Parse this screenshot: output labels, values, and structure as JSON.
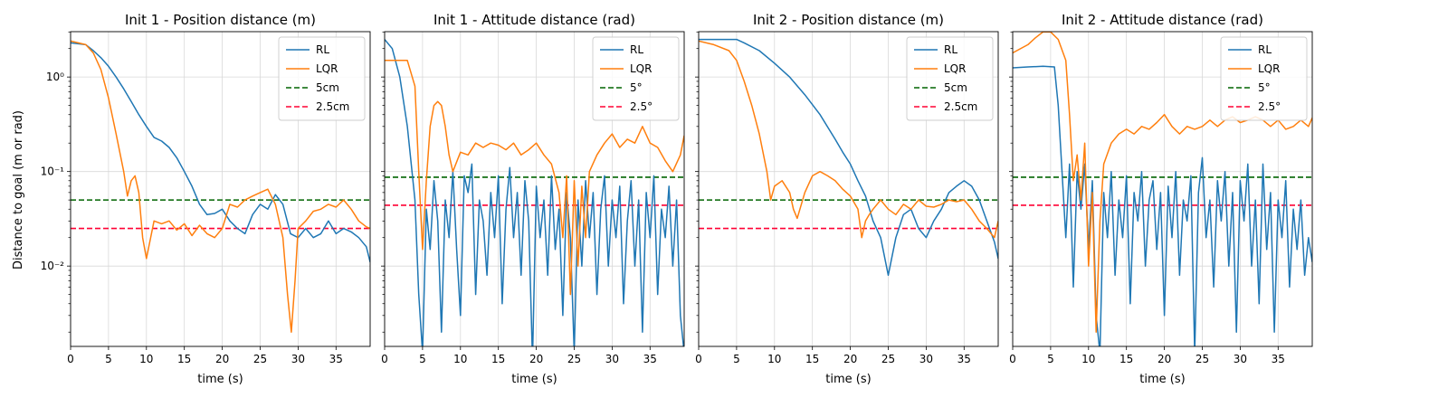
{
  "figure": {
    "ylabel": "Distance to goal (m or rad)",
    "xlabel": "time (s)",
    "xlim": [
      0,
      39.5
    ],
    "ylim_log10": [
      -2.85,
      0.48
    ],
    "xticks": [
      0,
      5,
      10,
      15,
      20,
      25,
      30,
      35
    ],
    "yticks": [
      {
        "value": 0.01,
        "label": "10⁻²"
      },
      {
        "value": 0.1,
        "label": "10⁻¹"
      },
      {
        "value": 1,
        "label": "10⁰"
      }
    ],
    "colors": {
      "RL": "#1f77b4",
      "LQR": "#ff7f0e",
      "threshold_1": "#006400",
      "threshold_2": "#ff0033"
    }
  },
  "chart_data": [
    {
      "type": "line",
      "title": "Init 1 - Position distance (m)",
      "legend_location": "top-right",
      "series": [
        {
          "name": "RL",
          "x": [
            0,
            2,
            3,
            4,
            5,
            6,
            7,
            8,
            9,
            10,
            11,
            12,
            13,
            14,
            15,
            16,
            17,
            18,
            19,
            20,
            21,
            22,
            23,
            24,
            25,
            26,
            27,
            28,
            29,
            30,
            31,
            32,
            33,
            34,
            35,
            36,
            37,
            38,
            39,
            39.5
          ],
          "y": [
            2.3,
            2.2,
            1.9,
            1.6,
            1.3,
            1.0,
            0.75,
            0.55,
            0.4,
            0.3,
            0.23,
            0.21,
            0.18,
            0.14,
            0.1,
            0.07,
            0.045,
            0.035,
            0.036,
            0.04,
            0.03,
            0.025,
            0.022,
            0.035,
            0.045,
            0.04,
            0.057,
            0.045,
            0.022,
            0.02,
            0.025,
            0.02,
            0.022,
            0.03,
            0.022,
            0.025,
            0.023,
            0.02,
            0.016,
            0.011
          ]
        },
        {
          "name": "LQR",
          "x": [
            0,
            2,
            3,
            4,
            5,
            6,
            7,
            7.5,
            8,
            8.5,
            9,
            9.5,
            10,
            11,
            12,
            13,
            14,
            15,
            16,
            17,
            18,
            19,
            20,
            21,
            22,
            23,
            24,
            25,
            26,
            27,
            28,
            28.6,
            29.1,
            29.6,
            30,
            31,
            32,
            33,
            34,
            35,
            36,
            37,
            38,
            39,
            39.5
          ],
          "y": [
            2.4,
            2.2,
            1.8,
            1.2,
            0.6,
            0.25,
            0.1,
            0.055,
            0.08,
            0.09,
            0.06,
            0.02,
            0.012,
            0.03,
            0.028,
            0.03,
            0.024,
            0.028,
            0.021,
            0.027,
            0.022,
            0.02,
            0.025,
            0.045,
            0.042,
            0.05,
            0.055,
            0.06,
            0.065,
            0.045,
            0.02,
            0.005,
            0.002,
            0.007,
            0.025,
            0.03,
            0.038,
            0.04,
            0.045,
            0.042,
            0.05,
            0.04,
            0.03,
            0.026,
            0.025
          ]
        },
        {
          "name": "5cm",
          "style": "dashed",
          "y_constant": 0.05
        },
        {
          "name": "2.5cm",
          "style": "dashed",
          "y_constant": 0.025
        }
      ]
    },
    {
      "type": "line",
      "title": "Init 1 - Attitude distance (rad)",
      "legend_location": "top-right",
      "series": [
        {
          "name": "RL",
          "x": [
            0,
            1,
            2,
            3,
            4,
            4.5,
            5,
            5.5,
            6,
            6.5,
            7,
            7.5,
            8,
            8.5,
            9,
            9.5,
            10,
            10.5,
            11,
            11.5,
            12,
            12.5,
            13,
            13.5,
            14,
            14.5,
            15,
            15.5,
            16,
            16.5,
            17,
            17.5,
            18,
            18.5,
            19,
            19.5,
            20,
            20.5,
            21,
            21.5,
            22,
            22.5,
            23,
            23.5,
            24,
            24.5,
            25,
            25.5,
            26,
            26.5,
            27,
            27.5,
            28,
            28.5,
            29,
            29.5,
            30,
            30.5,
            31,
            31.5,
            32,
            32.5,
            33,
            33.5,
            34,
            34.5,
            35,
            35.5,
            36,
            36.5,
            37,
            37.5,
            38,
            38.5,
            39,
            39.5
          ],
          "y": [
            2.5,
            2.0,
            1.0,
            0.3,
            0.05,
            0.005,
            0.0012,
            0.04,
            0.015,
            0.08,
            0.03,
            0.002,
            0.05,
            0.02,
            0.1,
            0.015,
            0.003,
            0.09,
            0.06,
            0.12,
            0.005,
            0.05,
            0.03,
            0.008,
            0.06,
            0.02,
            0.09,
            0.004,
            0.04,
            0.11,
            0.02,
            0.06,
            0.008,
            0.08,
            0.03,
            0.001,
            0.07,
            0.02,
            0.05,
            0.008,
            0.09,
            0.015,
            0.04,
            0.003,
            0.06,
            0.02,
            0.0012,
            0.05,
            0.01,
            0.08,
            0.02,
            0.06,
            0.005,
            0.04,
            0.09,
            0.01,
            0.05,
            0.02,
            0.07,
            0.004,
            0.03,
            0.08,
            0.01,
            0.05,
            0.002,
            0.06,
            0.02,
            0.09,
            0.005,
            0.04,
            0.02,
            0.07,
            0.01,
            0.05,
            0.003,
            0.0012
          ]
        },
        {
          "name": "LQR",
          "x": [
            0,
            3,
            4,
            4.5,
            5,
            5.5,
            6,
            6.5,
            7,
            7.5,
            8,
            8.5,
            9,
            10,
            11,
            12,
            13,
            14,
            15,
            16,
            17,
            18,
            19,
            20,
            21,
            22,
            23,
            23.5,
            24,
            24.5,
            25,
            25.5,
            26,
            26.5,
            27,
            28,
            29,
            30,
            31,
            32,
            33,
            34,
            35,
            36,
            37,
            38,
            39,
            39.5
          ],
          "y": [
            1.5,
            1.5,
            0.8,
            0.1,
            0.015,
            0.08,
            0.3,
            0.5,
            0.55,
            0.5,
            0.3,
            0.15,
            0.1,
            0.16,
            0.15,
            0.2,
            0.18,
            0.2,
            0.19,
            0.17,
            0.2,
            0.15,
            0.17,
            0.2,
            0.15,
            0.12,
            0.06,
            0.02,
            0.09,
            0.005,
            0.08,
            0.01,
            0.07,
            0.02,
            0.1,
            0.15,
            0.2,
            0.25,
            0.18,
            0.22,
            0.2,
            0.3,
            0.2,
            0.18,
            0.13,
            0.1,
            0.15,
            0.24
          ]
        },
        {
          "name": "5°",
          "style": "dashed",
          "y_constant": 0.087
        },
        {
          "name": "2.5°",
          "style": "dashed",
          "y_constant": 0.044
        }
      ]
    },
    {
      "type": "line",
      "title": "Init 2 - Position distance (m)",
      "legend_location": "top-right",
      "series": [
        {
          "name": "RL",
          "x": [
            0,
            2,
            4,
            5,
            6,
            8,
            10,
            12,
            14,
            16,
            18,
            19,
            20,
            21,
            22,
            23,
            24,
            25,
            26,
            27,
            28,
            29,
            30,
            31,
            32,
            33,
            34,
            35,
            36,
            37,
            38,
            39,
            39.5
          ],
          "y": [
            2.5,
            2.5,
            2.5,
            2.5,
            2.3,
            1.9,
            1.4,
            1.0,
            0.65,
            0.4,
            0.22,
            0.16,
            0.12,
            0.08,
            0.055,
            0.03,
            0.02,
            0.008,
            0.02,
            0.035,
            0.04,
            0.025,
            0.02,
            0.03,
            0.04,
            0.06,
            0.07,
            0.08,
            0.07,
            0.05,
            0.03,
            0.018,
            0.012
          ]
        },
        {
          "name": "LQR",
          "x": [
            0,
            2,
            4,
            5,
            6,
            7,
            8,
            9,
            9.5,
            10,
            11,
            12,
            12.5,
            13,
            14,
            15,
            16,
            17,
            18,
            19,
            20,
            21,
            21.5,
            22,
            22.5,
            23,
            24,
            25,
            26,
            27,
            28,
            29,
            30,
            31,
            32,
            33,
            34,
            35,
            36,
            37,
            38,
            39,
            39.5
          ],
          "y": [
            2.4,
            2.2,
            1.9,
            1.5,
            0.9,
            0.5,
            0.25,
            0.1,
            0.05,
            0.07,
            0.08,
            0.06,
            0.04,
            0.032,
            0.06,
            0.09,
            0.1,
            0.09,
            0.08,
            0.065,
            0.055,
            0.04,
            0.02,
            0.03,
            0.035,
            0.04,
            0.05,
            0.04,
            0.035,
            0.045,
            0.04,
            0.05,
            0.043,
            0.042,
            0.045,
            0.05,
            0.048,
            0.05,
            0.04,
            0.03,
            0.025,
            0.02,
            0.03
          ]
        },
        {
          "name": "5cm",
          "style": "dashed",
          "y_constant": 0.05
        },
        {
          "name": "2.5cm",
          "style": "dashed",
          "y_constant": 0.025
        }
      ]
    },
    {
      "type": "line",
      "title": "Init 2 - Attitude distance (rad)",
      "legend_location": "top-right",
      "series": [
        {
          "name": "RL",
          "x": [
            0,
            2,
            4,
            5.5,
            6,
            6.5,
            7,
            7.5,
            8,
            8.5,
            9,
            9.5,
            10,
            10.5,
            11,
            11.5,
            12,
            12.5,
            13,
            13.5,
            14,
            14.5,
            15,
            15.5,
            16,
            16.5,
            17,
            17.5,
            18,
            18.5,
            19,
            19.5,
            20,
            20.5,
            21,
            21.5,
            22,
            22.5,
            23,
            23.5,
            24,
            24.5,
            25,
            25.5,
            26,
            26.5,
            27,
            27.5,
            28,
            28.5,
            29,
            29.5,
            30,
            30.5,
            31,
            31.5,
            32,
            32.5,
            33,
            33.5,
            34,
            34.5,
            35,
            35.5,
            36,
            36.5,
            37,
            37.5,
            38,
            38.5,
            39,
            39.5
          ],
          "y": [
            1.25,
            1.28,
            1.3,
            1.28,
            0.5,
            0.1,
            0.02,
            0.12,
            0.006,
            0.1,
            0.04,
            0.12,
            0.015,
            0.08,
            0.003,
            0.0012,
            0.06,
            0.02,
            0.1,
            0.008,
            0.05,
            0.02,
            0.09,
            0.004,
            0.06,
            0.03,
            0.1,
            0.01,
            0.05,
            0.08,
            0.015,
            0.06,
            0.003,
            0.07,
            0.02,
            0.1,
            0.008,
            0.05,
            0.03,
            0.09,
            0.0012,
            0.06,
            0.14,
            0.02,
            0.05,
            0.006,
            0.08,
            0.03,
            0.1,
            0.01,
            0.06,
            0.002,
            0.08,
            0.03,
            0.12,
            0.01,
            0.05,
            0.004,
            0.12,
            0.015,
            0.06,
            0.002,
            0.05,
            0.02,
            0.08,
            0.006,
            0.04,
            0.015,
            0.05,
            0.008,
            0.02,
            0.011
          ]
        },
        {
          "name": "LQR",
          "x": [
            0,
            2,
            3,
            4,
            5,
            6,
            7,
            7.5,
            8,
            8.5,
            9,
            9.5,
            10,
            10.5,
            11,
            11.5,
            12,
            13,
            14,
            15,
            16,
            17,
            18,
            19,
            20,
            21,
            22,
            23,
            24,
            25,
            26,
            27,
            28,
            29,
            30,
            31,
            32,
            33,
            34,
            35,
            36,
            37,
            38,
            39,
            39.5
          ],
          "y": [
            1.8,
            2.2,
            2.6,
            3.0,
            3.0,
            2.5,
            1.5,
            0.4,
            0.08,
            0.15,
            0.05,
            0.2,
            0.01,
            0.06,
            0.002,
            0.03,
            0.12,
            0.2,
            0.25,
            0.28,
            0.25,
            0.3,
            0.28,
            0.33,
            0.4,
            0.3,
            0.25,
            0.3,
            0.28,
            0.3,
            0.35,
            0.3,
            0.35,
            0.38,
            0.33,
            0.35,
            0.38,
            0.35,
            0.3,
            0.35,
            0.28,
            0.3,
            0.35,
            0.3,
            0.37
          ]
        },
        {
          "name": "5°",
          "style": "dashed",
          "y_constant": 0.087
        },
        {
          "name": "2.5°",
          "style": "dashed",
          "y_constant": 0.044
        }
      ]
    }
  ]
}
